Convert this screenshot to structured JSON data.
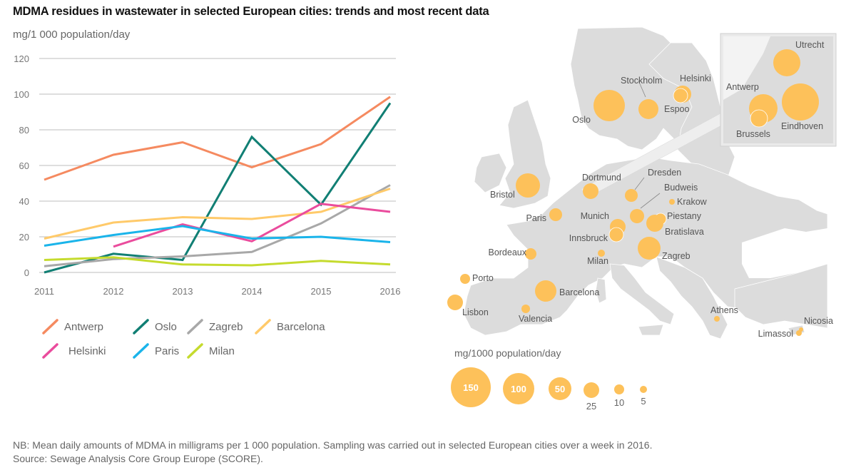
{
  "title": "MDMA residues in wastewater in selected European cities: trends and most recent data",
  "unit_label": "mg/1 000 population/day",
  "chart_data": {
    "type": "line",
    "title": "MDMA residues in wastewater in selected European cities: trends and most recent data",
    "ylabel": "mg/1 000 population/day",
    "xlabel": "",
    "x": [
      2011,
      2012,
      2013,
      2014,
      2015,
      2016
    ],
    "xticks": [
      "2011",
      "2012",
      "2013",
      "2014",
      "2015",
      "2016"
    ],
    "yticks": [
      "0",
      "20",
      "40",
      "60",
      "80",
      "100",
      "120"
    ],
    "ylim": [
      0,
      120
    ],
    "grid": true,
    "legend_position": "bottom",
    "series": [
      {
        "name": "Antwerp",
        "color": "#F58A60",
        "values": [
          52,
          66,
          73,
          59,
          72,
          98.5
        ]
      },
      {
        "name": "Oslo",
        "color": "#117F74",
        "values": [
          0,
          10.5,
          7,
          76,
          38,
          95
        ]
      },
      {
        "name": "Zagreb",
        "color": "#A8A8A8",
        "values": [
          3.5,
          7.5,
          9,
          11.5,
          27.5,
          49
        ]
      },
      {
        "name": "Barcelona",
        "color": "#FFCA6A",
        "values": [
          19,
          28,
          31,
          30,
          34,
          47
        ]
      },
      {
        "name": "Helsinki",
        "color": "#EA4C9D",
        "values": [
          null,
          14.5,
          27,
          17.5,
          38.5,
          34
        ]
      },
      {
        "name": "Paris",
        "color": "#1AB4EA",
        "values": [
          15,
          21,
          26,
          19,
          20,
          17
        ]
      },
      {
        "name": "Milan",
        "color": "#C5DB2E",
        "values": [
          7,
          8.5,
          4.5,
          4,
          6.5,
          4.5
        ]
      }
    ]
  },
  "legend": {
    "items": [
      "Antwerp",
      "Oslo",
      "Zagreb",
      "Barcelona",
      "Helsinki",
      "Paris",
      "Milan"
    ]
  },
  "map": {
    "bubble_color": "#FDC15A",
    "land_color": "#DCDCDC",
    "cities": [
      {
        "name": "Oslo",
        "approx_value": 100
      },
      {
        "name": "Stockholm",
        "approx_value": 35
      },
      {
        "name": "Helsinki",
        "approx_value": 34
      },
      {
        "name": "Espoo",
        "approx_value": 25
      },
      {
        "name": "Bristol",
        "approx_value": 60
      },
      {
        "name": "Dortmund",
        "approx_value": 30
      },
      {
        "name": "Dresden",
        "approx_value": 17
      },
      {
        "name": "Budweis",
        "approx_value": 22
      },
      {
        "name": "Krakow",
        "approx_value": 5
      },
      {
        "name": "Piestany",
        "approx_value": 11
      },
      {
        "name": "Bratislava",
        "approx_value": 24
      },
      {
        "name": "Paris",
        "approx_value": 17
      },
      {
        "name": "Munich",
        "approx_value": 25
      },
      {
        "name": "Innsbruck",
        "approx_value": 20
      },
      {
        "name": "Zagreb",
        "approx_value": 49
      },
      {
        "name": "Milan",
        "approx_value": 5
      },
      {
        "name": "Bordeaux",
        "approx_value": 13
      },
      {
        "name": "Porto",
        "approx_value": 11
      },
      {
        "name": "Lisbon",
        "approx_value": 27
      },
      {
        "name": "Barcelona",
        "approx_value": 47
      },
      {
        "name": "Valencia",
        "approx_value": 7
      },
      {
        "name": "Athens",
        "approx_value": 3
      },
      {
        "name": "Nicosia",
        "approx_value": 2
      },
      {
        "name": "Limassol",
        "approx_value": 3
      },
      {
        "name": "Utrecht",
        "approx_value": 80
      },
      {
        "name": "Antwerp",
        "approx_value": 98.5
      },
      {
        "name": "Brussels",
        "approx_value": 40
      },
      {
        "name": "Eindhoven",
        "approx_value": 110
      }
    ]
  },
  "size_legend": {
    "title": "mg/1000 population/day",
    "values": [
      "150",
      "100",
      "50",
      "25",
      "10",
      "5"
    ]
  },
  "footer": {
    "note": "NB: Mean daily amounts of MDMA in milligrams per 1 000 population. Sampling was carried out in selected European cities over a week in 2016.",
    "source": "Source: Sewage Analysis Core Group Europe (SCORE)."
  }
}
